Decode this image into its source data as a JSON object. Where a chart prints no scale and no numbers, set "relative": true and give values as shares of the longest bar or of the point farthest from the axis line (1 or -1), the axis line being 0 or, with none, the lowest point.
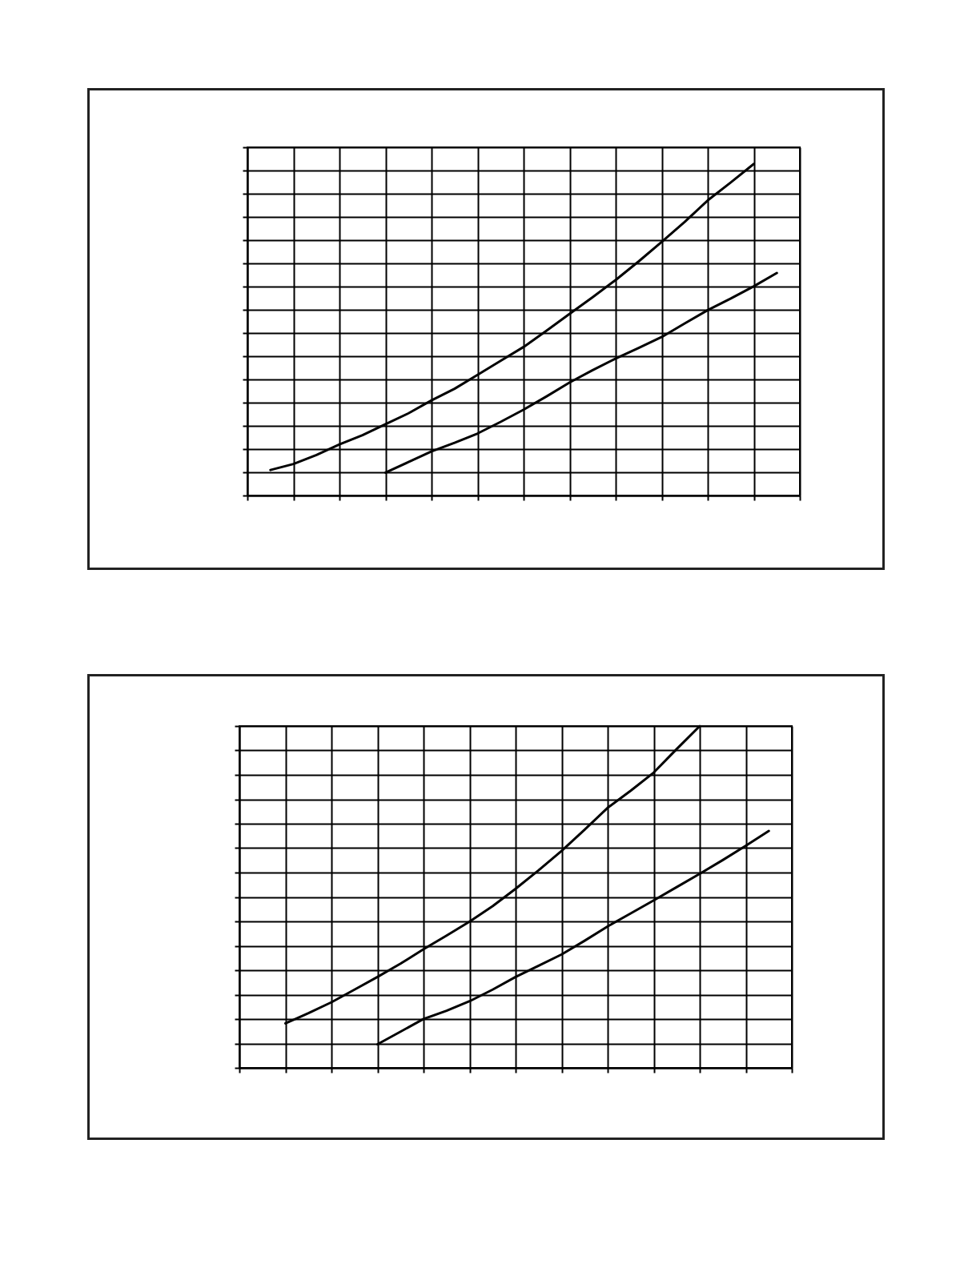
{
  "chart_data": [
    {
      "type": "line",
      "relative": true,
      "grid": true,
      "tick_labels": false,
      "categories": [
        null,
        null,
        null,
        null,
        null,
        null,
        null,
        null,
        null,
        null,
        null,
        null,
        null,
        null,
        null,
        null,
        null,
        null,
        null,
        null,
        null,
        null,
        null,
        null,
        null
      ],
      "series": [
        {
          "color": "#000000",
          "values": [
            null,
            0.077,
            0.095,
            0.122,
            0.154,
            0.182,
            0.215,
            0.248,
            0.287,
            0.322,
            0.364,
            0.406,
            0.448,
            0.497,
            0.548,
            0.598,
            0.65,
            0.706,
            0.765,
            0.825,
            0.89,
            0.944,
            1,
            null,
            null
          ]
        },
        {
          "color": "#000000",
          "values": [
            null,
            null,
            null,
            null,
            null,
            null,
            0.069,
            0.101,
            0.133,
            0.159,
            0.187,
            0.222,
            0.259,
            0.299,
            0.341,
            0.378,
            0.413,
            0.445,
            0.478,
            0.519,
            0.559,
            0.594,
            0.631,
            0.671,
            null
          ]
        }
      ]
    },
    {
      "type": "line",
      "relative": true,
      "grid": true,
      "tick_labels": false,
      "categories": [
        null,
        null,
        null,
        null,
        null,
        null,
        null,
        null,
        null,
        null,
        null,
        null,
        null,
        null,
        null,
        null,
        null,
        null,
        null,
        null,
        null,
        null,
        null,
        null,
        null
      ],
      "series": [
        {
          "color": "#000000",
          "values": [
            null,
            null,
            0.13,
            0.16,
            0.192,
            0.229,
            0.266,
            0.305,
            0.347,
            0.387,
            0.428,
            0.473,
            0.524,
            0.578,
            0.635,
            0.697,
            0.761,
            0.811,
            0.864,
            0.933,
            1,
            null,
            null,
            null,
            null
          ]
        },
        {
          "color": "#000000",
          "values": [
            null,
            null,
            null,
            null,
            null,
            null,
            0.069,
            0.106,
            0.143,
            0.167,
            0.195,
            0.229,
            0.266,
            0.299,
            0.332,
            0.372,
            0.414,
            0.452,
            0.49,
            0.529,
            0.568,
            0.608,
            0.65,
            0.693,
            null
          ]
        }
      ]
    }
  ]
}
